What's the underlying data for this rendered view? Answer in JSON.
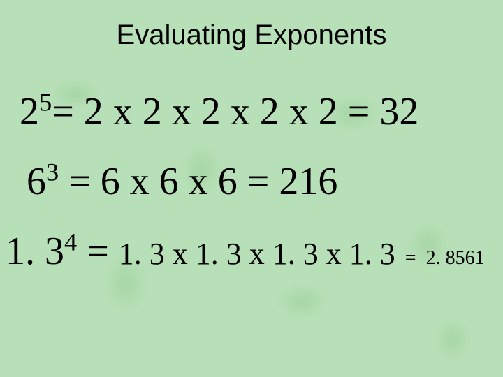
{
  "slide": {
    "title": "Evaluating Exponents",
    "background_color": "#b8e0b8",
    "leaf_color": "rgba(140,200,140,0.4)",
    "title_font": "Arial",
    "title_fontsize": 40,
    "body_font": "Times New Roman",
    "body_fontsize": 56,
    "text_color": "#000000",
    "lines": [
      {
        "base": "2",
        "exponent": "5",
        "equals1": "=",
        "expansion": "2 x 2 x 2 x 2 x 2",
        "equals2": "=",
        "result": "32",
        "expansion_fontsize": 56,
        "result_fontsize": 56
      },
      {
        "base": "6",
        "exponent": "3",
        "equals1": "=",
        "expansion": "6 x 6 x 6",
        "equals2": "=",
        "result": "216",
        "expansion_fontsize": 56,
        "result_fontsize": 56
      },
      {
        "base": "1. 3",
        "exponent": "4",
        "equals1": "=",
        "expansion": "1. 3 x 1. 3 x 1. 3 x 1. 3",
        "equals2": "=",
        "result": "2. 8561",
        "expansion_fontsize": 44,
        "result_fontsize": 28
      }
    ]
  }
}
